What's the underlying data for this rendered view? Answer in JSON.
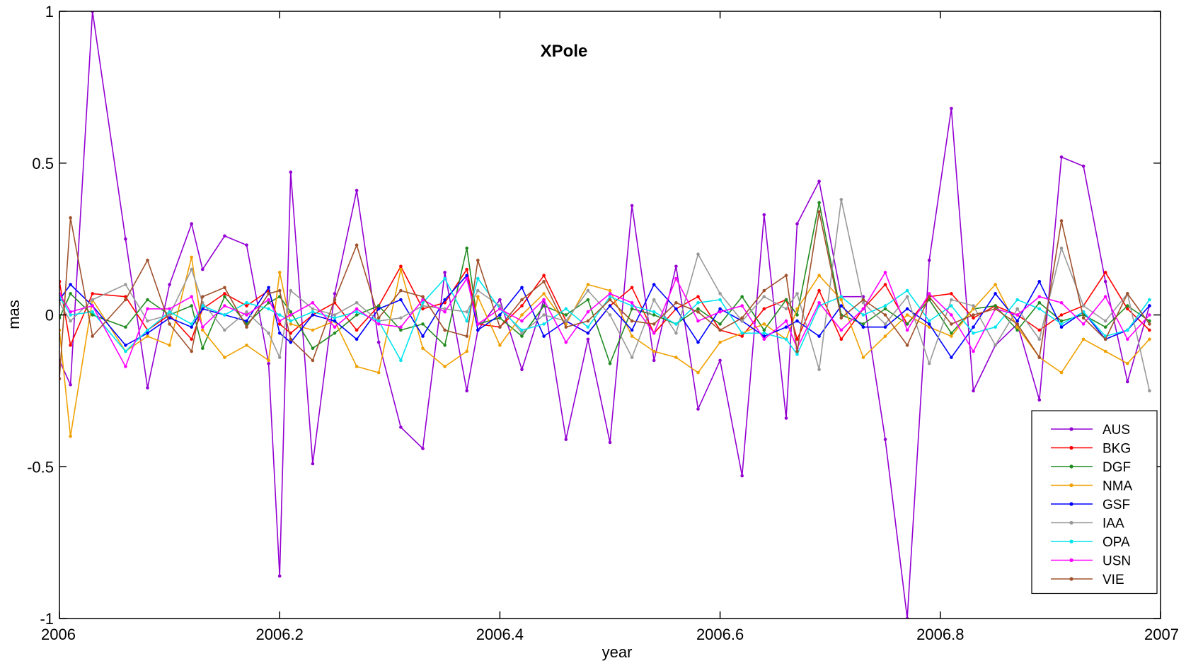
{
  "chart_data": {
    "type": "line",
    "title": "XPole",
    "xlabel": "year",
    "ylabel": "mas",
    "xlim": [
      2006,
      2007
    ],
    "ylim": [
      -1,
      1
    ],
    "xticks": [
      "2006",
      "2006.2",
      "2006.4",
      "2006.6",
      "2006.8",
      "2007"
    ],
    "yticks": [
      "1",
      "0.5",
      "0",
      "-0.5",
      "-1"
    ],
    "grid": false,
    "legend_position": "bottom-right",
    "x": [
      2006.0,
      2006.01,
      2006.03,
      2006.06,
      2006.08,
      2006.1,
      2006.12,
      2006.13,
      2006.15,
      2006.17,
      2006.19,
      2006.2,
      2006.21,
      2006.23,
      2006.25,
      2006.27,
      2006.29,
      2006.31,
      2006.33,
      2006.35,
      2006.37,
      2006.38,
      2006.4,
      2006.42,
      2006.44,
      2006.46,
      2006.48,
      2006.5,
      2006.52,
      2006.54,
      2006.56,
      2006.58,
      2006.6,
      2006.62,
      2006.64,
      2006.66,
      2006.67,
      2006.69,
      2006.71,
      2006.73,
      2006.75,
      2006.77,
      2006.79,
      2006.81,
      2006.83,
      2006.85,
      2006.87,
      2006.89,
      2006.91,
      2006.93,
      2006.95,
      2006.97,
      2006.99
    ],
    "series": [
      {
        "name": "AUS",
        "color": "#9400d3",
        "values": [
          -0.15,
          -0.23,
          1.0,
          0.25,
          -0.24,
          0.1,
          0.3,
          0.15,
          0.26,
          0.23,
          -0.16,
          -0.86,
          0.47,
          -0.49,
          0.07,
          0.41,
          -0.09,
          -0.37,
          -0.44,
          0.14,
          -0.25,
          -0.05,
          0.05,
          -0.18,
          0.05,
          -0.41,
          -0.08,
          -0.42,
          0.36,
          -0.15,
          0.16,
          -0.31,
          -0.15,
          -0.53,
          0.33,
          -0.34,
          0.3,
          0.44,
          0.06,
          0.06,
          -0.41,
          -1.0,
          0.18,
          0.68,
          -0.25,
          -0.1,
          -0.03,
          -0.28,
          0.52,
          0.49,
          0.11,
          -0.22,
          0.03
        ]
      },
      {
        "name": "BKG",
        "color": "#ff0000",
        "values": [
          0.11,
          -0.1,
          0.07,
          0.06,
          -0.05,
          0.0,
          -0.08,
          0.02,
          0.07,
          0.03,
          0.08,
          -0.03,
          -0.06,
          0.0,
          0.04,
          -0.05,
          0.03,
          0.16,
          0.02,
          0.04,
          0.15,
          -0.03,
          -0.04,
          0.03,
          0.13,
          -0.02,
          -0.06,
          0.03,
          0.09,
          -0.06,
          0.02,
          0.06,
          -0.05,
          -0.07,
          0.02,
          0.05,
          -0.08,
          0.08,
          -0.08,
          0.02,
          0.1,
          -0.03,
          0.06,
          0.07,
          -0.01,
          0.03,
          0.0,
          -0.05,
          0.0,
          0.03,
          0.14,
          0.02,
          -0.05
        ]
      },
      {
        "name": "DGF",
        "color": "#228b22",
        "values": [
          -0.01,
          0.07,
          0.0,
          -0.04,
          0.05,
          0.0,
          0.03,
          -0.11,
          0.06,
          -0.03,
          0.04,
          0.06,
          0.01,
          -0.11,
          -0.06,
          0.0,
          0.03,
          -0.05,
          -0.03,
          -0.1,
          0.22,
          -0.03,
          -0.01,
          -0.07,
          0.03,
          0.0,
          0.05,
          -0.16,
          0.02,
          0.0,
          -0.03,
          0.02,
          -0.03,
          0.06,
          -0.05,
          0.05,
          0.0,
          0.37,
          0.0,
          -0.03,
          0.02,
          -0.03,
          0.05,
          -0.06,
          0.02,
          0.03,
          -0.05,
          0.04,
          -0.02,
          0.0,
          -0.04,
          0.03,
          -0.02
        ]
      },
      {
        "name": "NMA",
        "color": "#f0a000",
        "values": [
          -0.05,
          -0.4,
          0.05,
          -0.12,
          -0.07,
          -0.1,
          0.19,
          -0.05,
          -0.14,
          -0.1,
          -0.15,
          0.14,
          -0.03,
          -0.05,
          -0.02,
          -0.17,
          -0.19,
          0.15,
          -0.11,
          -0.17,
          -0.12,
          0.06,
          -0.1,
          0.0,
          0.07,
          -0.03,
          0.1,
          0.08,
          -0.07,
          -0.12,
          -0.14,
          -0.19,
          -0.09,
          -0.06,
          -0.03,
          -0.08,
          0.02,
          0.13,
          0.05,
          -0.14,
          -0.07,
          0.0,
          -0.04,
          -0.07,
          0.02,
          0.1,
          -0.04,
          -0.14,
          -0.19,
          -0.08,
          -0.12,
          -0.16,
          -0.08
        ]
      },
      {
        "name": "GSF",
        "color": "#0000ff",
        "values": [
          0.05,
          0.1,
          0.03,
          -0.1,
          -0.06,
          -0.01,
          -0.04,
          0.02,
          0.0,
          -0.02,
          0.09,
          -0.06,
          -0.09,
          0.0,
          -0.02,
          -0.08,
          0.02,
          0.05,
          -0.07,
          0.05,
          0.13,
          -0.05,
          0.0,
          0.09,
          -0.07,
          -0.02,
          -0.06,
          0.03,
          -0.05,
          0.1,
          0.02,
          -0.09,
          0.02,
          -0.02,
          -0.07,
          -0.04,
          -0.02,
          -0.07,
          0.03,
          -0.04,
          -0.04,
          0.02,
          -0.03,
          -0.14,
          -0.04,
          0.07,
          -0.02,
          0.11,
          -0.04,
          0.01,
          -0.08,
          -0.05,
          0.03
        ]
      },
      {
        "name": "IAA",
        "color": "#999999",
        "values": [
          0.04,
          -0.02,
          0.05,
          0.1,
          -0.02,
          0.0,
          0.15,
          0.04,
          -0.05,
          0.01,
          -0.06,
          -0.14,
          0.08,
          0.02,
          0.0,
          0.04,
          -0.02,
          -0.01,
          0.03,
          0.02,
          0.01,
          0.08,
          0.03,
          -0.06,
          0.0,
          -0.02,
          0.08,
          0.0,
          -0.14,
          0.05,
          -0.06,
          0.2,
          0.07,
          -0.02,
          0.06,
          0.02,
          0.07,
          -0.18,
          0.38,
          0.04,
          -0.03,
          0.06,
          -0.16,
          0.05,
          0.03,
          -0.1,
          0.02,
          -0.08,
          0.22,
          0.03,
          -0.02,
          0.07,
          -0.25
        ]
      },
      {
        "name": "OPA",
        "color": "#00e5ee",
        "values": [
          0.06,
          0.0,
          0.01,
          -0.12,
          -0.05,
          0.01,
          -0.03,
          0.03,
          0.0,
          0.04,
          0.02,
          0.0,
          -0.02,
          0.01,
          -0.01,
          0.01,
          -0.02,
          -0.15,
          0.04,
          0.12,
          -0.02,
          0.12,
          0.02,
          -0.05,
          -0.03,
          0.02,
          -0.04,
          0.06,
          0.03,
          0.01,
          -0.03,
          0.04,
          0.05,
          -0.06,
          -0.06,
          -0.08,
          -0.13,
          0.03,
          0.06,
          0.0,
          0.03,
          0.08,
          -0.02,
          0.03,
          -0.06,
          -0.04,
          0.05,
          0.02,
          -0.03,
          0.01,
          -0.07,
          -0.05,
          0.05
        ]
      },
      {
        "name": "USN",
        "color": "#ff00ff",
        "values": [
          0.07,
          0.01,
          0.03,
          -0.17,
          0.02,
          0.02,
          0.06,
          -0.04,
          0.03,
          0.0,
          0.05,
          -0.02,
          0.0,
          0.04,
          -0.04,
          0.02,
          -0.03,
          -0.04,
          0.05,
          0.01,
          0.12,
          -0.03,
          0.02,
          -0.02,
          0.05,
          -0.09,
          0.01,
          0.07,
          0.04,
          -0.06,
          0.12,
          -0.02,
          0.01,
          0.03,
          -0.08,
          -0.02,
          -0.11,
          0.04,
          -0.05,
          0.02,
          0.14,
          -0.05,
          0.07,
          0.0,
          -0.12,
          0.02,
          0.0,
          0.06,
          0.04,
          -0.03,
          0.06,
          -0.08,
          0.0
        ]
      },
      {
        "name": "VIE",
        "color": "#a0522d",
        "values": [
          -0.21,
          0.32,
          -0.07,
          0.05,
          0.18,
          -0.03,
          -0.12,
          0.06,
          0.09,
          -0.04,
          0.07,
          0.08,
          -0.08,
          -0.15,
          0.05,
          0.23,
          -0.01,
          0.08,
          0.06,
          -0.05,
          -0.07,
          0.18,
          -0.04,
          0.05,
          0.11,
          -0.04,
          -0.02,
          0.05,
          -0.02,
          -0.03,
          0.04,
          0.01,
          -0.05,
          -0.01,
          0.08,
          0.13,
          -0.12,
          0.34,
          -0.01,
          0.05,
          0.0,
          -0.1,
          0.06,
          -0.03,
          0.0,
          0.02,
          -0.03,
          -0.14,
          0.31,
          -0.01,
          -0.08,
          0.07,
          -0.03
        ]
      }
    ]
  }
}
